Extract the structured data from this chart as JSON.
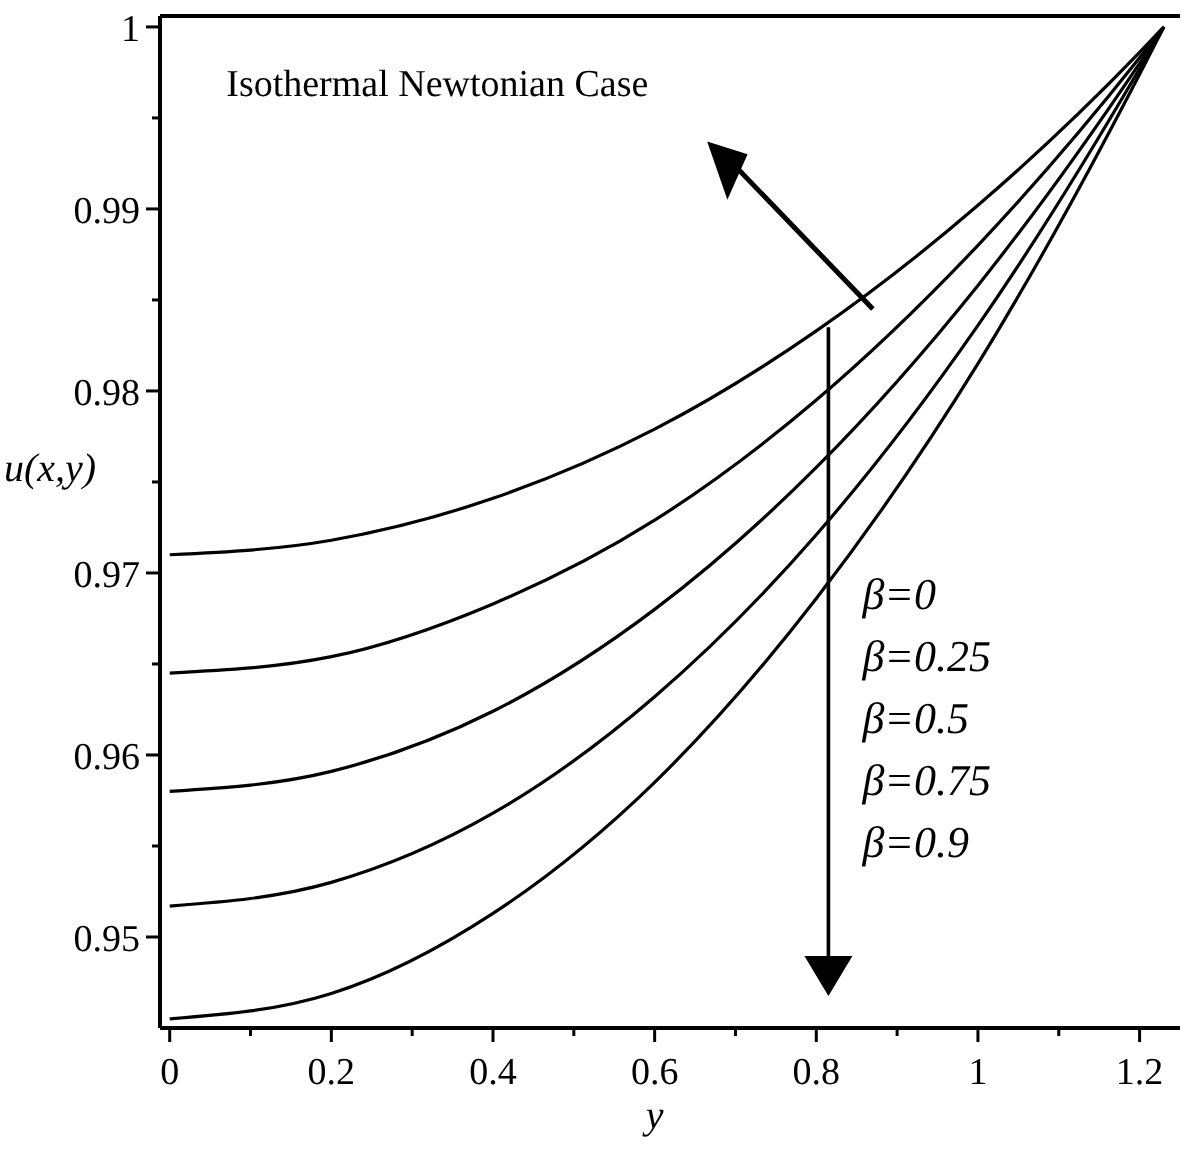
{
  "chart_data": {
    "type": "line",
    "xlabel": "y",
    "ylabel": "u(x,y)",
    "x": [
      0,
      0.2,
      0.4,
      0.6,
      0.8,
      1,
      1.2,
      1.23
    ],
    "series": [
      {
        "color": "#000000",
        "values": [
          0.971,
          0.9718,
          0.9741,
          0.9779,
          0.9833,
          0.9902,
          0.9986,
          1
        ]
      },
      {
        "color": "#000000",
        "values": [
          0.9645,
          0.9654,
          0.9683,
          0.9729,
          0.9795,
          0.988,
          0.9983,
          1
        ]
      },
      {
        "color": "#000000",
        "values": [
          0.958,
          0.9591,
          0.9624,
          0.968,
          0.9758,
          0.9858,
          0.998,
          1
        ]
      },
      {
        "color": "#000000",
        "values": [
          0.9517,
          0.953,
          0.9568,
          0.9632,
          0.9721,
          0.9836,
          0.9977,
          1
        ]
      },
      {
        "color": "#000000",
        "values": [
          0.9455,
          0.9469,
          0.9513,
          0.9585,
          0.9686,
          0.9815,
          0.9974,
          1
        ]
      }
    ],
    "xlim": [
      -0.012,
      1.25
    ],
    "ylim": [
      0.945,
      1.0006
    ],
    "xticks": [
      0,
      {
        "value": 0.1,
        "label": null
      },
      0.2,
      {
        "value": 0.3,
        "label": null
      },
      0.4,
      {
        "value": 0.5,
        "label": null
      },
      0.6,
      {
        "value": 0.7,
        "label": null
      },
      0.8,
      {
        "value": 0.9,
        "label": null
      },
      1,
      {
        "value": 1.1,
        "label": null
      },
      1.2
    ],
    "yticks": [
      {
        "value": 0.95,
        "label": "0.95"
      },
      {
        "value": 0.955,
        "label": null
      },
      {
        "value": 0.96,
        "label": "0.96"
      },
      {
        "value": 0.965,
        "label": null
      },
      {
        "value": 0.97,
        "label": "0.97"
      },
      {
        "value": 0.975,
        "label": null
      },
      {
        "value": 0.98,
        "label": "0.98"
      },
      {
        "value": 0.985,
        "label": null
      },
      {
        "value": 0.99,
        "label": "0.99"
      },
      {
        "value": 0.995,
        "label": null
      },
      1
    ],
    "annotations": [
      "Isothermal Newtonian Case",
      "β=0",
      "β=0.25",
      "β=0.5",
      "β=0.75",
      "β=0.9"
    ],
    "grid": false,
    "marker": "none",
    "line_style": "solid"
  }
}
